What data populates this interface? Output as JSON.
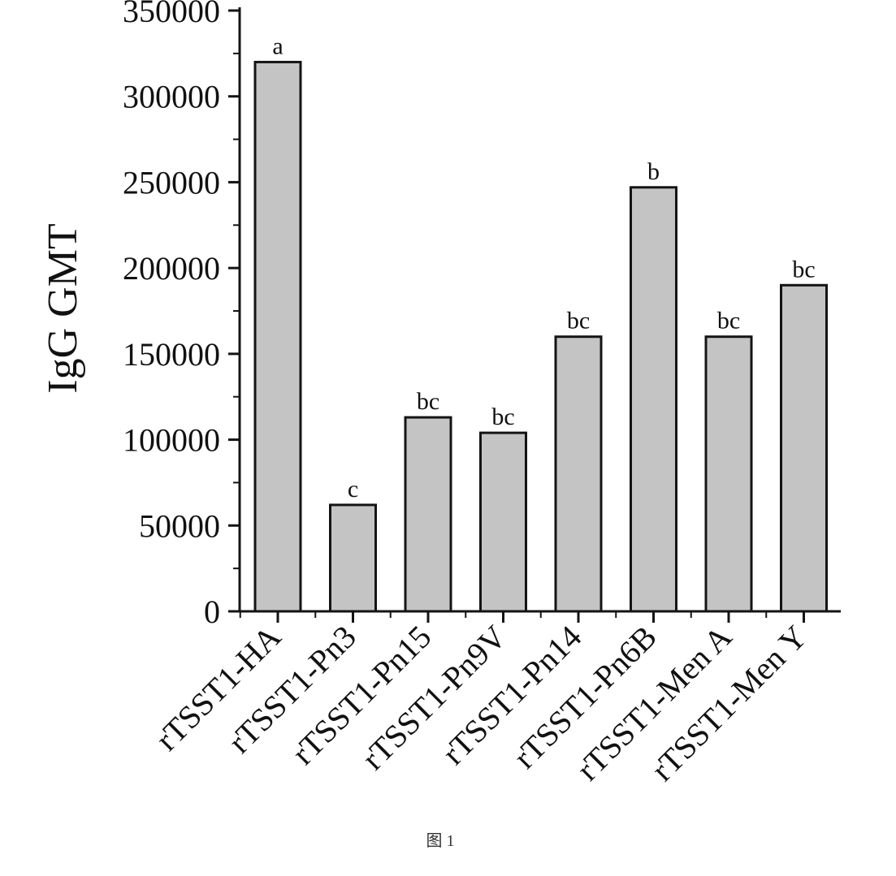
{
  "chart_data": {
    "type": "bar",
    "categories": [
      "rTSST1-HA",
      "rTSST1-Pn3",
      "rTSST1-Pn15",
      "rTSST1-Pn9V",
      "rTSST1-Pn14",
      "rTSST1-Pn6B",
      "rTSST1-Men A",
      "rTSST1-Men Y"
    ],
    "values": [
      320000,
      62000,
      113000,
      104000,
      160000,
      247000,
      160000,
      190000
    ],
    "data_labels": [
      "a",
      "c",
      "bc",
      "bc",
      "bc",
      "b",
      "bc",
      "bc"
    ],
    "title": "",
    "xlabel": "",
    "ylabel": "IgG GMT",
    "ylim": [
      0,
      350000
    ],
    "yticks": [
      0,
      50000,
      100000,
      150000,
      200000,
      250000,
      300000,
      350000
    ],
    "ytick_labels": [
      "0",
      "50000",
      "100000",
      "150000",
      "200000",
      "250000",
      "300000",
      "350000"
    ],
    "grid": false,
    "legend": "none",
    "bar_color": "#c4c4c4",
    "edge_color": "#141414"
  },
  "caption": "图 1"
}
